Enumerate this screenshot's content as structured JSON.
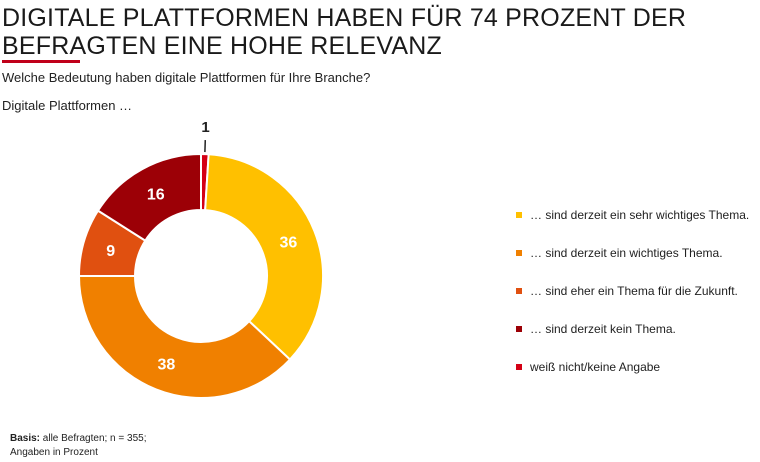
{
  "header": {
    "title": "DIGITALE PLATTFORMEN HABEN FÜR 74 PROZENT DER BEFRAGTEN EINE HOHE RELEVANZ",
    "question": "Welche Bedeutung haben digitale Plattformen für Ihre Branche?",
    "subtitle": "Digitale Plattformen …"
  },
  "footer": {
    "basis_label": "Basis:",
    "basis_text": " alle Befragten; n = 355;",
    "unit_text": "Angaben in Prozent"
  },
  "colors": {
    "title_accent": "#c0001a"
  },
  "chart_data": {
    "type": "pie",
    "subtype": "donut",
    "categories": [
      "… sind derzeit ein sehr wichtiges Thema.",
      "… sind derzeit ein wichtiges Thema.",
      "… sind eher ein Thema für die Zukunft.",
      "… sind derzeit kein Thema.",
      "weiß nicht/keine Angabe"
    ],
    "values": [
      36,
      38,
      9,
      16,
      1
    ],
    "colors": [
      "#ffc000",
      "#f08000",
      "#e05010",
      "#9c0006",
      "#d40015"
    ],
    "data_labels": [
      "36",
      "38",
      "9",
      "16",
      "1"
    ],
    "legend_position": "right"
  }
}
